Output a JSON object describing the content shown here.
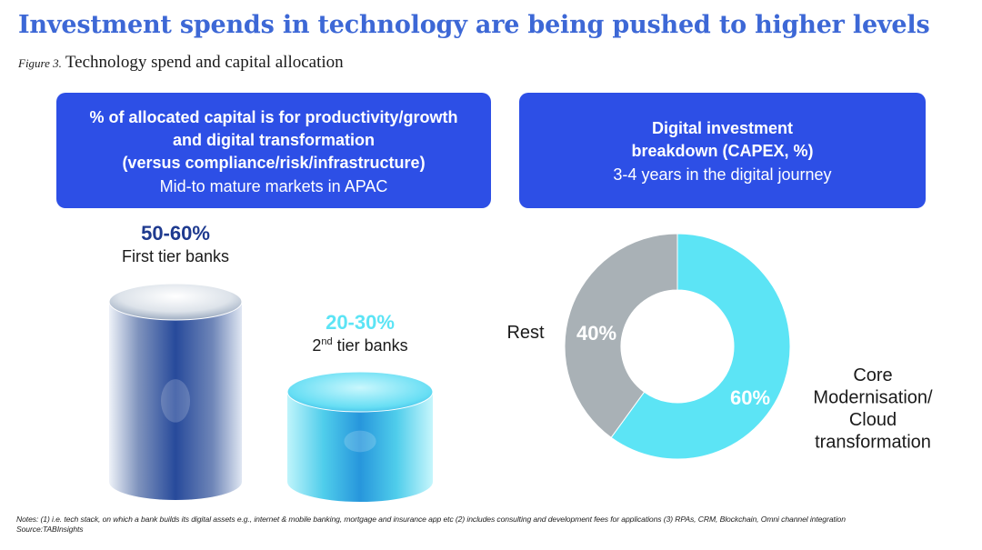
{
  "title": "Investment spends in technology are being pushed to higher levels",
  "figure": {
    "label": "Figure 3.",
    "caption": "Technology spend and capital allocation"
  },
  "left_panel": {
    "lines": [
      "% of allocated capital is for productivity/growth",
      "and digital transformation",
      "(versus compliance/risk/infrastructure)"
    ],
    "subtitle": "Mid-to mature markets in APAC"
  },
  "right_panel": {
    "lines": [
      "Digital investment",
      "breakdown (CAPEX, %)"
    ],
    "subtitle": "3-4 years in the digital journey"
  },
  "colors": {
    "panel": "#2d4fe6",
    "title": "#3d68d6",
    "navy": "#1e3a8f",
    "cyan": "#5ce4f5",
    "grey": "#a9b1b6"
  },
  "chart_data": [
    {
      "type": "bar",
      "categories": [
        "First tier banks",
        "2nd tier banks"
      ],
      "values": [
        [
          50,
          60
        ],
        [
          20,
          30
        ]
      ],
      "value_labels": [
        "50-60%",
        "20-30%"
      ],
      "unit": "%"
    },
    {
      "type": "pie",
      "style": "donut",
      "slices": [
        {
          "label": "Core Modernisation/ Cloud transformation",
          "label_lines": [
            "Core",
            "Modernisation/",
            "Cloud",
            "transformation"
          ],
          "value": 60,
          "value_label": "60%",
          "color": "#5ce4f5"
        },
        {
          "label": "Rest",
          "label_lines": [
            "Rest"
          ],
          "value": 40,
          "value_label": "40%",
          "color": "#a9b1b6"
        }
      ]
    }
  ],
  "notes": "Notes: (1) i.e. tech stack, on which a bank builds its digital assets e.g., internet & mobile banking, mortgage and insurance app etc (2) includes consulting and development fees for applications (3) RPAs, CRM, Blockchain, Omni channel integration",
  "source": "Source:TABInsights"
}
